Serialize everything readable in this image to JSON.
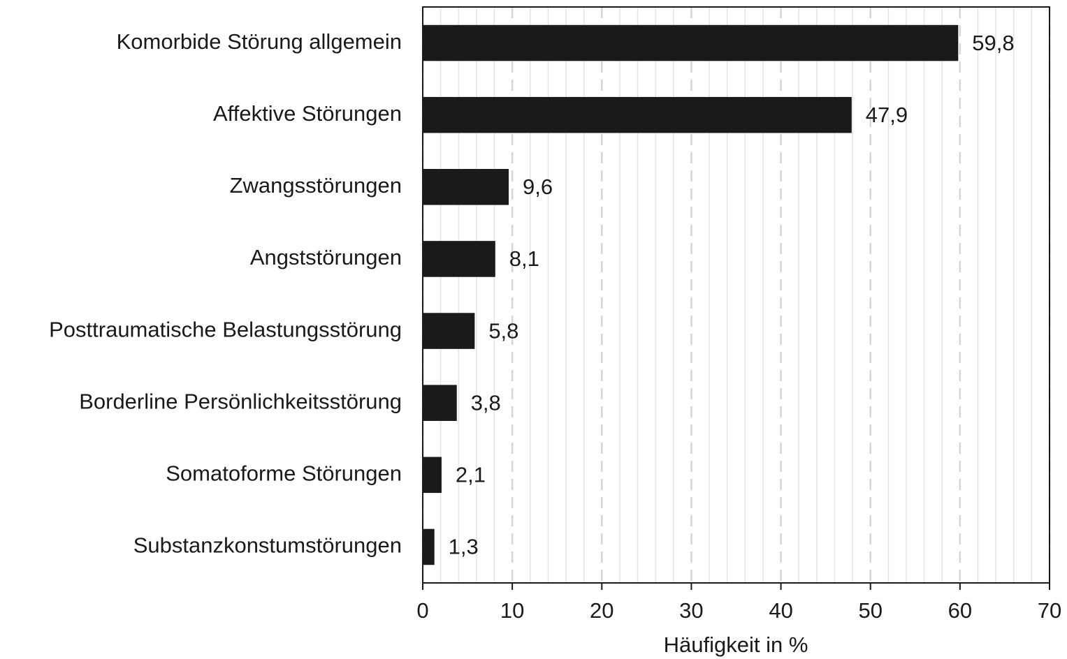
{
  "chart_data": {
    "type": "barh",
    "xlabel": "Häufigkeit in %",
    "categories": [
      "Komorbide Störung allgemein",
      "Affektive Störungen",
      "Zwangsstörungen",
      "Angststörungen",
      "Posttraumatische Belastungsstörung",
      "Borderline Persönlichkeitsstörung",
      "Somatoforme Störungen",
      "Substanzkonstumstörungen"
    ],
    "values": [
      59.8,
      47.9,
      9.6,
      8.1,
      5.8,
      3.8,
      2.1,
      1.3
    ],
    "value_labels": [
      "59,8",
      "47,9",
      "9,6",
      "8,1",
      "5,8",
      "3,8",
      "2,1",
      "1,3"
    ],
    "color": "#1a1a1a",
    "xlim": [
      0,
      70
    ],
    "xticks": [
      0,
      10,
      20,
      30,
      40,
      50,
      60,
      70
    ],
    "minor_xticks": [
      2,
      4,
      6,
      8,
      12,
      14,
      16,
      18,
      22,
      24,
      26,
      28,
      32,
      34,
      36,
      38,
      42,
      44,
      46,
      48,
      52,
      54,
      56,
      58,
      62,
      64,
      66,
      68
    ],
    "grid": true
  }
}
